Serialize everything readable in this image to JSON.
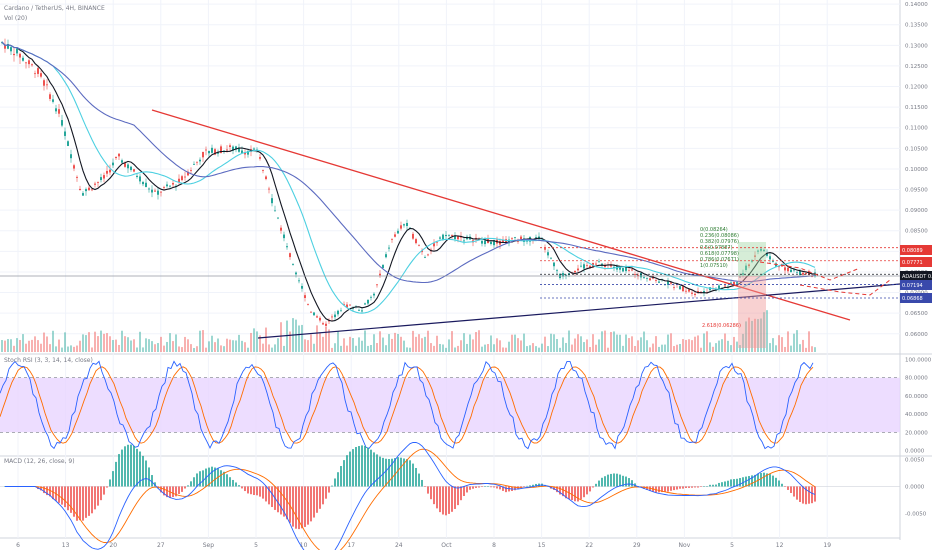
{
  "header": {
    "title": "ADAUSDT",
    "symbol_line": "Cardano / TetherUS, 4H, BINANCE",
    "vol_label": "Vol (20)"
  },
  "chart_data": [
    {
      "type": "candlestick",
      "title": "Cardano / TetherUS, 4H, BINANCE",
      "pane": "price",
      "y_axis": {
        "ticks": [
          0.14,
          0.135,
          0.13,
          0.125,
          0.12,
          0.115,
          0.11,
          0.105,
          0.1,
          0.095,
          0.09,
          0.085,
          0.08,
          0.075,
          0.07,
          0.065,
          0.06
        ],
        "range": [
          0.058,
          0.141
        ]
      },
      "x_axis": {
        "ticks": [
          "6",
          "13",
          "20",
          "27",
          "Sep",
          "5",
          "10",
          "17",
          "24",
          "Oct",
          "8",
          "15",
          "22",
          "29",
          "Nov",
          "5",
          "12",
          "19"
        ]
      },
      "price_tags": [
        {
          "label": "0.08089",
          "value": 0.08089,
          "color": "#e53935"
        },
        {
          "label": "0.07771",
          "value": 0.07771,
          "color": "#e53935"
        },
        {
          "label": "ADAUSDT 0.07445",
          "value": 0.07445,
          "color": "#131722"
        },
        {
          "label": "0.07194",
          "value": 0.07194,
          "color": "#3949ab"
        },
        {
          "label": "0.06868",
          "value": 0.06868,
          "color": "#3949ab"
        }
      ],
      "fib_labels": [
        {
          "label": "0(0.08264)",
          "value": 0.08264
        },
        {
          "label": "0.236(0.08086)",
          "value": 0.08086
        },
        {
          "label": "0.382(0.07976)",
          "value": 0.07976
        },
        {
          "label": "0.5(0.07887)",
          "value": 0.07887
        },
        {
          "label": "0.618(0.07798)",
          "value": 0.07798
        },
        {
          "label": "0.786(0.07671)",
          "value": 0.07671
        },
        {
          "label": "1(0.07510)",
          "value": 0.0751
        },
        {
          "label": "2.618(0.06286)",
          "value": 0.06286
        }
      ],
      "series": [
        {
          "role": "candles",
          "color_up": "#26a69a",
          "color_down": "#ef5350"
        },
        {
          "role": "ma-fast",
          "color": "#131722"
        },
        {
          "role": "ma-mid",
          "color": "#4dd0e1"
        },
        {
          "role": "ma-slow",
          "color": "#5c6bc0"
        }
      ]
    },
    {
      "type": "line",
      "title": "Stoch RSI (3, 3, 14, 14, close)",
      "pane": "stoch",
      "y_axis": {
        "ticks": [
          100,
          80,
          60,
          40,
          20,
          0
        ],
        "range": [
          -5,
          105
        ]
      },
      "band": [
        20,
        80
      ],
      "series": [
        {
          "role": "k",
          "color": "#2962ff"
        },
        {
          "role": "d",
          "color": "#ff6d00"
        }
      ]
    },
    {
      "type": "bar",
      "title": "MACD (12, 26, close, 9)",
      "pane": "macd",
      "y_axis": {
        "ticks": [
          0.005,
          0,
          -0.005
        ],
        "range": [
          -0.0085,
          0.0055
        ]
      },
      "series": [
        {
          "role": "macd",
          "color": "#2962ff"
        },
        {
          "role": "signal",
          "color": "#ff6d00"
        },
        {
          "role": "histogram",
          "color_up": "#26a69a",
          "color_down": "#ef5350"
        }
      ]
    }
  ],
  "colors": {
    "bg": "#ffffff",
    "grid": "#f0f3fa",
    "axis_text": "#787b86",
    "trend_red": "#e53935",
    "trend_navy": "#1a1a5e",
    "band_fill": "#e9d5ff"
  }
}
